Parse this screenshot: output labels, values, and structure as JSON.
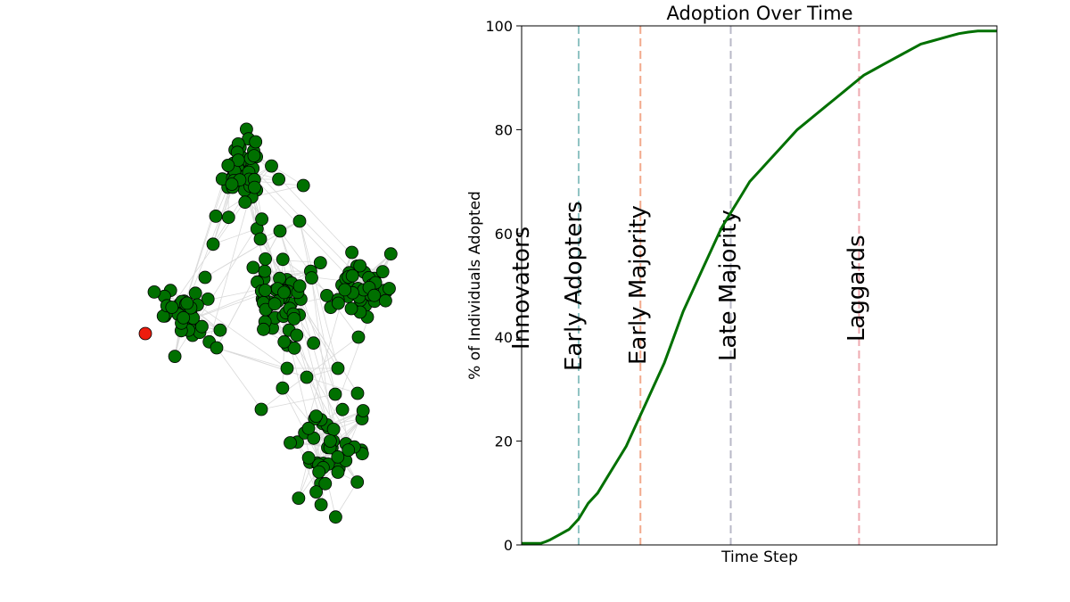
{
  "network": {
    "colors": {
      "adopted": "#007000",
      "not_adopted": "#ee1c0e",
      "edge": "#d9d9d9",
      "outline": "#000000"
    },
    "clusters": [
      {
        "name": "top",
        "count": 50
      },
      {
        "name": "left",
        "count": 40
      },
      {
        "name": "center",
        "count": 55
      },
      {
        "name": "right",
        "count": 45
      },
      {
        "name": "bottom",
        "count": 45
      }
    ],
    "not_adopted_count": 1
  },
  "chart_data": {
    "type": "line",
    "title": "Adoption Over Time",
    "xlabel": "Time Step",
    "ylabel": "% of Individuals Adopted",
    "ylim": [
      0,
      100
    ],
    "yticks": [
      0,
      20,
      40,
      60,
      80,
      100
    ],
    "xticks": [],
    "x": [
      0,
      4,
      5,
      6,
      7,
      8,
      10,
      12,
      14,
      16,
      18,
      20,
      22,
      24,
      26,
      28,
      30,
      32,
      34,
      36,
      38,
      40,
      42,
      44,
      46,
      48,
      50,
      52,
      54,
      56,
      58,
      60,
      62,
      64,
      66,
      68,
      70,
      72,
      74,
      76,
      78,
      80,
      82,
      84,
      86,
      88,
      90,
      92,
      94,
      96,
      98,
      100
    ],
    "series": [
      {
        "color": "#007000",
        "values": [
          0.3,
          0.3,
          0.6,
          1,
          1.5,
          2,
          3,
          5,
          8,
          10,
          13,
          16,
          19,
          23,
          27,
          31,
          35,
          40,
          45,
          49,
          53,
          57,
          61,
          64,
          67,
          70,
          72,
          74,
          76,
          78,
          80,
          81.5,
          83,
          84.5,
          86,
          87.5,
          89,
          90.5,
          91.5,
          92.5,
          93.5,
          94.5,
          95.5,
          96.5,
          97,
          97.5,
          98,
          98.5,
          98.8,
          99,
          99,
          99
        ]
      }
    ],
    "phases": [
      {
        "label": "Innovators",
        "x": null,
        "color": ""
      },
      {
        "label": "Early Adopters",
        "x": 12,
        "color": "#8fc3c3"
      },
      {
        "label": "Early Majority",
        "x": 25,
        "color": "#f2a98c"
      },
      {
        "label": "Late Majority",
        "x": 44,
        "color": "#b9b9c8"
      },
      {
        "label": "Laggards",
        "x": 71,
        "color": "#eeaab0"
      }
    ],
    "grid": false,
    "legend": "none"
  }
}
